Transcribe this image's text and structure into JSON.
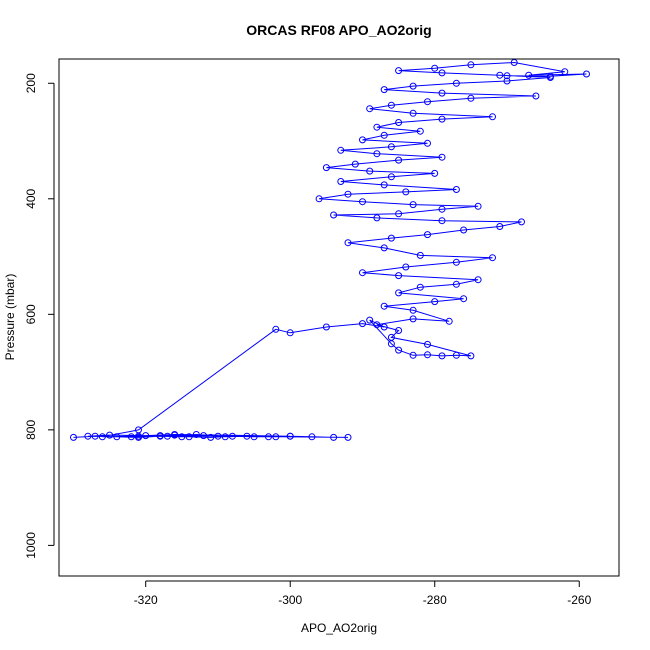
{
  "chart_data": {
    "type": "line",
    "title": "ORCAS RF08 APO_AO2orig",
    "xlabel": "APO_AO2orig",
    "ylabel": "Pressure (mbar)",
    "xlim": [
      -332,
      -254.5
    ],
    "ylim": [
      1053,
      158
    ],
    "y_reversed": true,
    "x_ticks": [
      -320,
      -300,
      -280,
      -260
    ],
    "y_ticks": [
      200,
      400,
      600,
      800,
      1000
    ],
    "grid": false,
    "legend": "none",
    "series_color": "#0000ff",
    "markers": "open-circle",
    "series": [
      {
        "name": "",
        "points": [
          [
            -330,
            813
          ],
          [
            -327,
            811
          ],
          [
            -324,
            812
          ],
          [
            -321,
            813
          ],
          [
            -318,
            811
          ],
          [
            -315,
            812
          ],
          [
            -312,
            810
          ],
          [
            -309,
            812
          ],
          [
            -306,
            811
          ],
          [
            -303,
            812
          ],
          [
            -300,
            811
          ],
          [
            -297,
            812
          ],
          [
            -294,
            813
          ],
          [
            -292,
            813
          ],
          [
            -318,
            810
          ],
          [
            -314,
            812
          ],
          [
            -311,
            813
          ],
          [
            -308,
            811
          ],
          [
            -305,
            812
          ],
          [
            -302,
            812
          ],
          [
            -300,
            811
          ],
          [
            -316,
            808
          ],
          [
            -320,
            810
          ],
          [
            -325,
            809
          ],
          [
            -328,
            811
          ],
          [
            -322,
            812
          ],
          [
            -317,
            811
          ],
          [
            -313,
            808
          ],
          [
            -310,
            811
          ],
          [
            -316,
            809
          ],
          [
            -321,
            811
          ],
          [
            -326,
            812
          ],
          [
            -321,
            800
          ],
          [
            -302,
            626
          ],
          [
            -300,
            632
          ],
          [
            -295,
            622
          ],
          [
            -290,
            616
          ],
          [
            -287,
            622
          ],
          [
            -289,
            610
          ],
          [
            -286,
            651
          ],
          [
            -285,
            662
          ],
          [
            -283,
            671
          ],
          [
            -281,
            670
          ],
          [
            -279,
            672
          ],
          [
            -277,
            671
          ],
          [
            -275,
            672
          ],
          [
            -281,
            652
          ],
          [
            -286,
            640
          ],
          [
            -285,
            628
          ],
          [
            -288,
            618
          ],
          [
            -283,
            608
          ],
          [
            -278,
            612
          ],
          [
            -283,
            593
          ],
          [
            -287,
            586
          ],
          [
            -280,
            578
          ],
          [
            -276,
            573
          ],
          [
            -285,
            563
          ],
          [
            -282,
            553
          ],
          [
            -277,
            548
          ],
          [
            -274,
            540
          ],
          [
            -285,
            533
          ],
          [
            -290,
            528
          ],
          [
            -284,
            518
          ],
          [
            -277,
            510
          ],
          [
            -272,
            502
          ],
          [
            -282,
            498
          ],
          [
            -287,
            485
          ],
          [
            -292,
            476
          ],
          [
            -286,
            468
          ],
          [
            -281,
            462
          ],
          [
            -276,
            454
          ],
          [
            -271,
            448
          ],
          [
            -268,
            440
          ],
          [
            -279,
            438
          ],
          [
            -288,
            433
          ],
          [
            -294,
            428
          ],
          [
            -285,
            426
          ],
          [
            -279,
            418
          ],
          [
            -274,
            413
          ],
          [
            -283,
            410
          ],
          [
            -290,
            405
          ],
          [
            -296,
            400
          ],
          [
            -292,
            392
          ],
          [
            -284,
            388
          ],
          [
            -277,
            384
          ],
          [
            -287,
            376
          ],
          [
            -293,
            370
          ],
          [
            -286,
            362
          ],
          [
            -280,
            356
          ],
          [
            -289,
            352
          ],
          [
            -295,
            346
          ],
          [
            -291,
            340
          ],
          [
            -285,
            333
          ],
          [
            -279,
            328
          ],
          [
            -288,
            322
          ],
          [
            -293,
            316
          ],
          [
            -286,
            310
          ],
          [
            -281,
            304
          ],
          [
            -290,
            298
          ],
          [
            -287,
            290
          ],
          [
            -282,
            283
          ],
          [
            -288,
            276
          ],
          [
            -285,
            268
          ],
          [
            -279,
            262
          ],
          [
            -272,
            258
          ],
          [
            -283,
            252
          ],
          [
            -289,
            244
          ],
          [
            -286,
            238
          ],
          [
            -281,
            232
          ],
          [
            -275,
            226
          ],
          [
            -266,
            222
          ],
          [
            -279,
            217
          ],
          [
            -287,
            211
          ],
          [
            -283,
            205
          ],
          [
            -277,
            200
          ],
          [
            -270,
            196
          ],
          [
            -264,
            190
          ],
          [
            -271,
            186
          ],
          [
            -279,
            182
          ],
          [
            -285,
            178
          ],
          [
            -280,
            174
          ],
          [
            -275,
            168
          ],
          [
            -269,
            164
          ],
          [
            -262,
            180
          ],
          [
            -267,
            186
          ],
          [
            -259,
            184
          ],
          [
            -264,
            188
          ],
          [
            -270,
            187
          ]
        ]
      }
    ]
  }
}
